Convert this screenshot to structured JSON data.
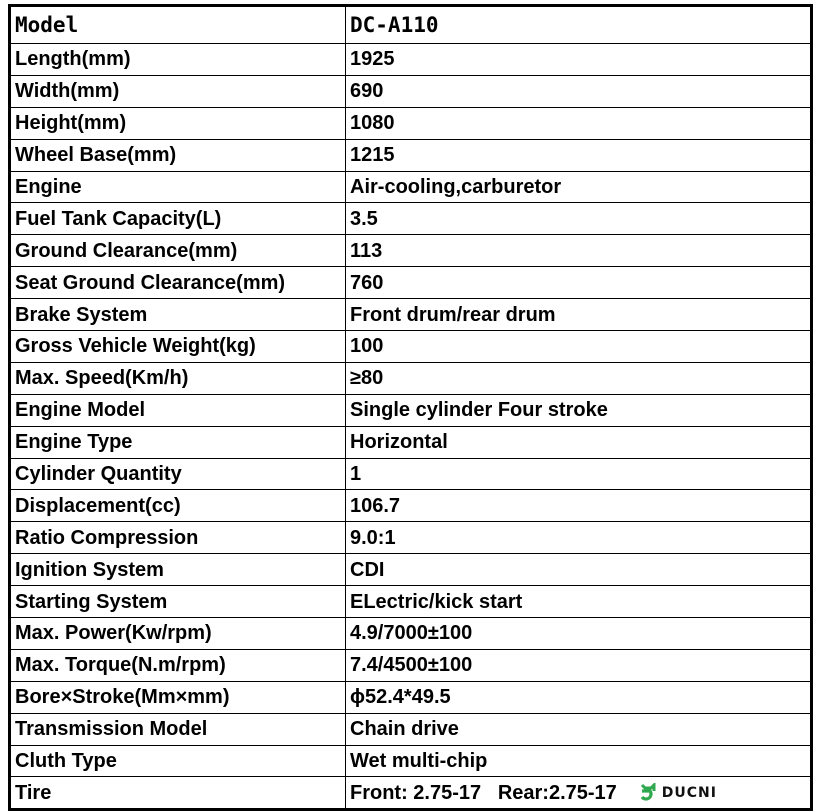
{
  "header": {
    "label": "Model",
    "value": "DC-A110"
  },
  "rows": [
    {
      "label": "Length(mm)",
      "value": "1925"
    },
    {
      "label": "Width(mm)",
      "value": "690"
    },
    {
      "label": "Height(mm)",
      "value": "1080"
    },
    {
      "label": "Wheel Base(mm)",
      "value": "1215"
    },
    {
      "label": "Engine",
      "value": "Air-cooling,carburetor"
    },
    {
      "label": "Fuel Tank Capacity(L)",
      "value": "3.5"
    },
    {
      "label": "Ground Clearance(mm)",
      "value": "113"
    },
    {
      "label": "Seat Ground Clearance(mm)",
      "value": "760"
    },
    {
      "label": "Brake System",
      "value": "Front drum/rear drum"
    },
    {
      "label": "Gross Vehicle Weight(kg)",
      "value": "100"
    },
    {
      "label": "Max. Speed(Km/h)",
      "value": "≥80"
    },
    {
      "label": "Engine Model",
      "value": "Single cylinder Four stroke"
    },
    {
      "label": "Engine Type",
      "value": "Horizontal"
    },
    {
      "label": "Cylinder Quantity",
      "value": "1"
    },
    {
      "label": "Displacement(cc)",
      "value": "106.7"
    },
    {
      "label": "Ratio Compression",
      "value": "9.0:1"
    },
    {
      "label": "Ignition System",
      "value": "CDI"
    },
    {
      "label": "Starting System",
      "value": "ELectric/kick start"
    },
    {
      "label": "Max. Power(Kw/rpm)",
      "value": "4.9/7000±100"
    },
    {
      "label": "Max. Torque(N.m/rpm)",
      "value": "7.4/4500±100"
    },
    {
      "label": "Bore×Stroke(Mm×mm)",
      "value": "ϕ52.4*49.5"
    },
    {
      "label": "Transmission Model",
      "value": "Chain drive"
    },
    {
      "label": "Cluth Type",
      "value": "Wet multi-chip"
    }
  ],
  "tire": {
    "label": "Tire",
    "front": "Front: 2.75-17",
    "rear": "Rear:2.75-17"
  },
  "logo": {
    "text": "DUCNI",
    "color": "#2fa84f",
    "icon": "ducni-logo-icon"
  }
}
